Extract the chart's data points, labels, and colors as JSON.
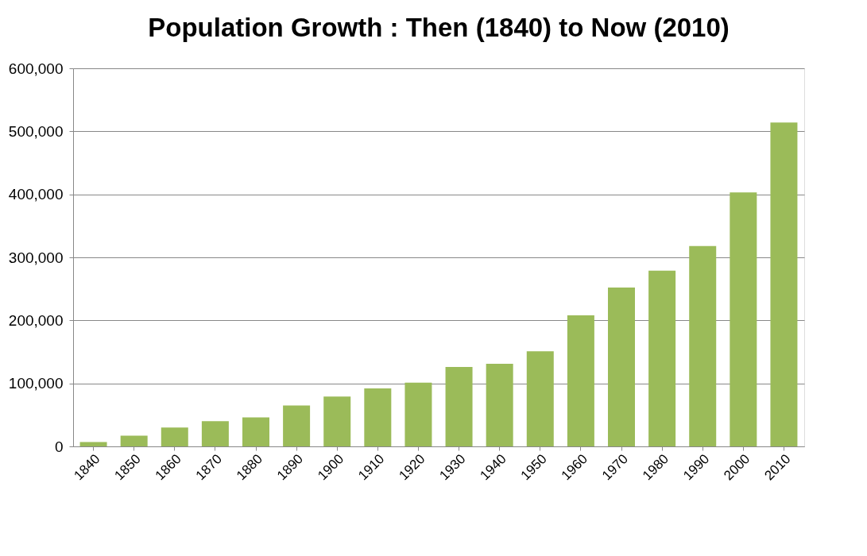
{
  "chart_data": {
    "type": "bar",
    "title": "Population Growth : Then (1840)  to Now (2010)",
    "categories": [
      "1840",
      "1850",
      "1860",
      "1870",
      "1880",
      "1890",
      "1900",
      "1910",
      "1920",
      "1930",
      "1940",
      "1950",
      "1960",
      "1970",
      "1980",
      "1990",
      "2000",
      "2010"
    ],
    "values": [
      7000,
      17000,
      30000,
      40000,
      46000,
      65000,
      79000,
      92000,
      101000,
      126000,
      131000,
      151000,
      208000,
      252000,
      279000,
      318000,
      403000,
      514000
    ],
    "color": "#9bbb59",
    "ylim": [
      0,
      600000
    ],
    "yticks": [
      0,
      {
        "value": 100000,
        "label": "100,000"
      },
      {
        "value": 200000,
        "label": "200,000"
      },
      {
        "value": 300000,
        "label": "300,000"
      },
      {
        "value": 400000,
        "label": "400,000"
      },
      {
        "value": 500000,
        "label": "500,000"
      },
      {
        "value": 600000,
        "label": "600,000"
      }
    ],
    "grid": "y"
  }
}
